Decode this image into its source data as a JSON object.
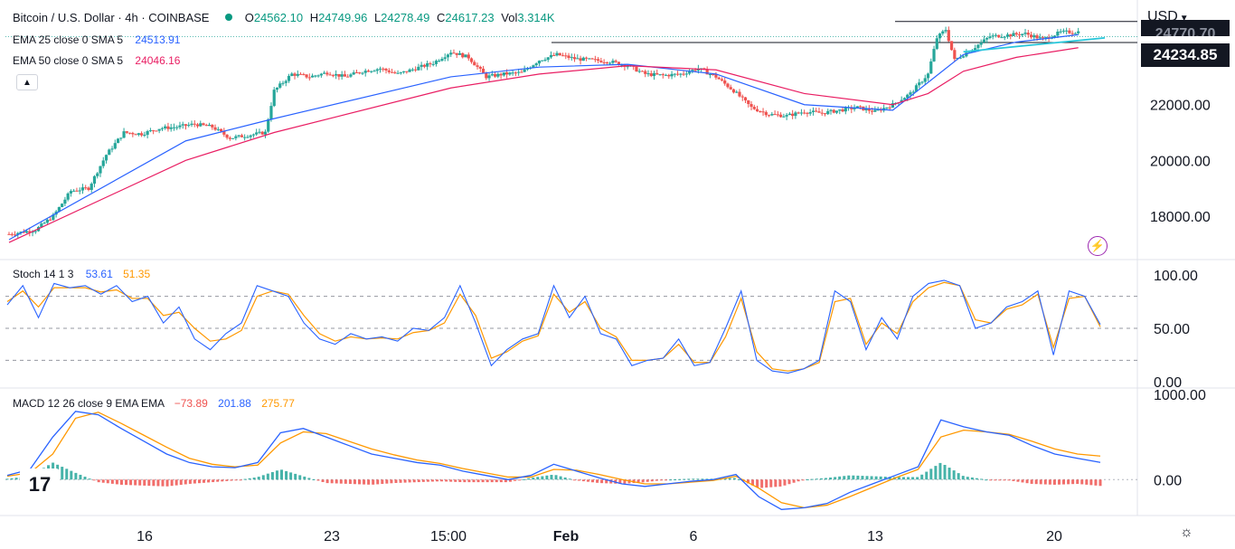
{
  "header": {
    "symbol_line": "Bitcoin / U.S. Dollar · 4h · COINBASE",
    "ohlc": {
      "o_label": "O",
      "o": "24562.10",
      "h_label": "H",
      "h": "24749.96",
      "l_label": "L",
      "l": "24278.49",
      "c_label": "C",
      "c": "24617.23",
      "vol_label": "Vol",
      "vol": "3.314K"
    },
    "ema25": {
      "label": "EMA 25 close 0 SMA 5",
      "value": "24513.91"
    },
    "ema50": {
      "label": "EMA 50 close 0 SMA 5",
      "value": "24046.16"
    },
    "collapse_icon": "chevron-up-icon"
  },
  "price_axis": {
    "currency": "USD",
    "currency_icon": "chevron-down-icon",
    "current_price": "24234.85",
    "partial_price_label": "24770.70",
    "ticks": [
      "22000.00",
      "20000.00",
      "18000.00"
    ]
  },
  "stoch_panel": {
    "label": "Stoch 14 1 3",
    "k_value": "53.61",
    "d_value": "51.35",
    "ticks": [
      "100.00",
      "50.00",
      "0.00"
    ]
  },
  "macd_panel": {
    "label": "MACD 12 26 close 9 EMA EMA",
    "hist_value": "−73.89",
    "macd_value": "201.88",
    "signal_value": "275.77",
    "ticks": [
      "1000.00",
      "0.00"
    ]
  },
  "time_axis": {
    "labels": [
      "16",
      "23",
      "15:00",
      "Feb",
      "6",
      "13",
      "20"
    ]
  },
  "colors": {
    "up": "#26a69a",
    "down": "#ef5350",
    "ema25": "#2962ff",
    "ema50": "#e91e63",
    "macd_line": "#2962ff",
    "signal_line": "#ff9800",
    "stoch_k": "#2962ff",
    "stoch_d": "#ff9800",
    "trendline": "#26c6da",
    "accent_green": "#089981"
  },
  "icons": {
    "logo": "tradingview-logo",
    "settings": "gear-icon",
    "alert": "lightning-icon",
    "status": "dot-icon"
  },
  "chart_data": [
    {
      "type": "candlestick",
      "title": "Bitcoin / U.S. Dollar · 4h · COINBASE",
      "ylim": [
        16500,
        25500
      ],
      "x_labels": [
        "16",
        "23",
        "15:00",
        "Feb",
        "6",
        "13",
        "20"
      ],
      "close_path": [
        [
          0,
          17350
        ],
        [
          3,
          17500
        ],
        [
          5,
          18000
        ],
        [
          7,
          18900
        ],
        [
          9,
          19000
        ],
        [
          11,
          20200
        ],
        [
          13,
          21000
        ],
        [
          15,
          20950
        ],
        [
          17,
          21150
        ],
        [
          19,
          21200
        ],
        [
          21,
          21300
        ],
        [
          23,
          21200
        ],
        [
          25,
          20800
        ],
        [
          27,
          20900
        ],
        [
          29,
          21000
        ],
        [
          30,
          22500
        ],
        [
          32,
          23100
        ],
        [
          34,
          23000
        ],
        [
          36,
          23150
        ],
        [
          38,
          23000
        ],
        [
          40,
          23200
        ],
        [
          42,
          23300
        ],
        [
          44,
          23100
        ],
        [
          46,
          23300
        ],
        [
          48,
          23500
        ],
        [
          50,
          23900
        ],
        [
          52,
          23700
        ],
        [
          54,
          23000
        ],
        [
          56,
          23100
        ],
        [
          58,
          23150
        ],
        [
          60,
          23600
        ],
        [
          62,
          23800
        ],
        [
          64,
          23650
        ],
        [
          66,
          23600
        ],
        [
          68,
          23550
        ],
        [
          70,
          23400
        ],
        [
          72,
          23100
        ],
        [
          74,
          23050
        ],
        [
          76,
          23100
        ],
        [
          78,
          23300
        ],
        [
          80,
          23000
        ],
        [
          82,
          22500
        ],
        [
          84,
          21900
        ],
        [
          86,
          21650
        ],
        [
          88,
          21600
        ],
        [
          90,
          21750
        ],
        [
          92,
          21700
        ],
        [
          94,
          21800
        ],
        [
          96,
          21900
        ],
        [
          98,
          21750
        ],
        [
          100,
          22000
        ],
        [
          102,
          22400
        ],
        [
          104,
          23100
        ],
        [
          105,
          24400
        ],
        [
          106,
          24700
        ],
        [
          107,
          23600
        ],
        [
          109,
          24000
        ],
        [
          111,
          24450
        ],
        [
          113,
          24500
        ],
        [
          115,
          24550
        ],
        [
          117,
          24350
        ],
        [
          119,
          24600
        ],
        [
          121,
          24620
        ]
      ],
      "ema25_path": [
        [
          0,
          17150
        ],
        [
          20,
          20700
        ],
        [
          30,
          21500
        ],
        [
          50,
          23000
        ],
        [
          60,
          23350
        ],
        [
          70,
          23450
        ],
        [
          80,
          23100
        ],
        [
          90,
          22000
        ],
        [
          100,
          21800
        ],
        [
          104,
          22800
        ],
        [
          108,
          23800
        ],
        [
          114,
          24250
        ],
        [
          121,
          24513.91
        ]
      ],
      "ema50_path": [
        [
          0,
          17050
        ],
        [
          20,
          20000
        ],
        [
          30,
          21000
        ],
        [
          50,
          22600
        ],
        [
          60,
          23100
        ],
        [
          70,
          23400
        ],
        [
          80,
          23250
        ],
        [
          90,
          22400
        ],
        [
          100,
          22000
        ],
        [
          104,
          22400
        ],
        [
          108,
          23200
        ],
        [
          114,
          23700
        ],
        [
          121,
          24046.16
        ]
      ],
      "horizontal_levels": [
        24990,
        24234.85
      ],
      "trendline": {
        "from": [
          108,
          23900
        ],
        "to": [
          124,
          24400
        ]
      }
    },
    {
      "type": "line",
      "title": "Stoch 14 1 3",
      "ylim": [
        0,
        100
      ],
      "bands": [
        80,
        50,
        20
      ],
      "series": [
        {
          "name": "%K",
          "values": [
            72,
            90,
            60,
            92,
            88,
            90,
            82,
            90,
            75,
            80,
            55,
            70,
            40,
            30,
            45,
            55,
            90,
            85,
            80,
            55,
            40,
            35,
            45,
            40,
            42,
            38,
            50,
            48,
            60,
            90,
            55,
            15,
            30,
            40,
            45,
            90,
            60,
            80,
            45,
            40,
            15,
            20,
            22,
            40,
            15,
            18,
            50,
            85,
            20,
            10,
            8,
            12,
            20,
            85,
            75,
            30,
            60,
            40,
            80,
            92,
            95,
            90,
            50,
            55,
            70,
            75,
            85,
            25,
            85,
            80,
            53.61
          ]
        },
        {
          "name": "%D",
          "values": [
            75,
            85,
            70,
            88,
            88,
            88,
            84,
            86,
            78,
            78,
            62,
            65,
            50,
            38,
            40,
            48,
            80,
            85,
            82,
            62,
            45,
            38,
            42,
            40,
            41,
            40,
            46,
            48,
            55,
            82,
            62,
            22,
            28,
            38,
            43,
            82,
            65,
            75,
            50,
            42,
            20,
            20,
            22,
            35,
            18,
            18,
            42,
            78,
            28,
            12,
            10,
            12,
            18,
            75,
            78,
            35,
            55,
            45,
            75,
            88,
            93,
            90,
            58,
            55,
            68,
            72,
            82,
            32,
            78,
            80,
            51.35
          ]
        }
      ]
    },
    {
      "type": "line",
      "title": "MACD 12 26 close 9 EMA EMA",
      "ylim": [
        -400,
        1000
      ],
      "series": [
        {
          "name": "MACD",
          "values": [
            50,
            120,
            500,
            800,
            760,
            600,
            450,
            300,
            200,
            150,
            140,
            200,
            550,
            600,
            500,
            400,
            300,
            250,
            200,
            170,
            100,
            50,
            0,
            50,
            180,
            100,
            20,
            -50,
            -80,
            -50,
            -20,
            0,
            60,
            -200,
            -350,
            -330,
            -280,
            -150,
            -50,
            50,
            150,
            700,
            620,
            560,
            520,
            400,
            300,
            250,
            201.88
          ]
        },
        {
          "name": "Signal",
          "values": [
            40,
            80,
            300,
            720,
            790,
            660,
            520,
            380,
            250,
            180,
            150,
            170,
            430,
            560,
            540,
            450,
            360,
            290,
            230,
            190,
            130,
            80,
            30,
            30,
            120,
            110,
            60,
            0,
            -50,
            -50,
            -30,
            -10,
            40,
            -100,
            -270,
            -330,
            -300,
            -200,
            -90,
            20,
            120,
            500,
            580,
            560,
            530,
            450,
            360,
            300,
            275.77
          ]
        },
        {
          "name": "Histogram",
          "values": [
            10,
            40,
            200,
            80,
            -30,
            -60,
            -70,
            -80,
            -50,
            -30,
            -10,
            30,
            120,
            40,
            -40,
            -50,
            -60,
            -40,
            -30,
            -20,
            -30,
            -30,
            -30,
            20,
            60,
            -10,
            -40,
            -50,
            -30,
            0,
            10,
            10,
            20,
            -100,
            -80,
            0,
            20,
            50,
            40,
            30,
            30,
            200,
            40,
            0,
            -10,
            -50,
            -60,
            -50,
            -73.89
          ]
        }
      ]
    }
  ]
}
